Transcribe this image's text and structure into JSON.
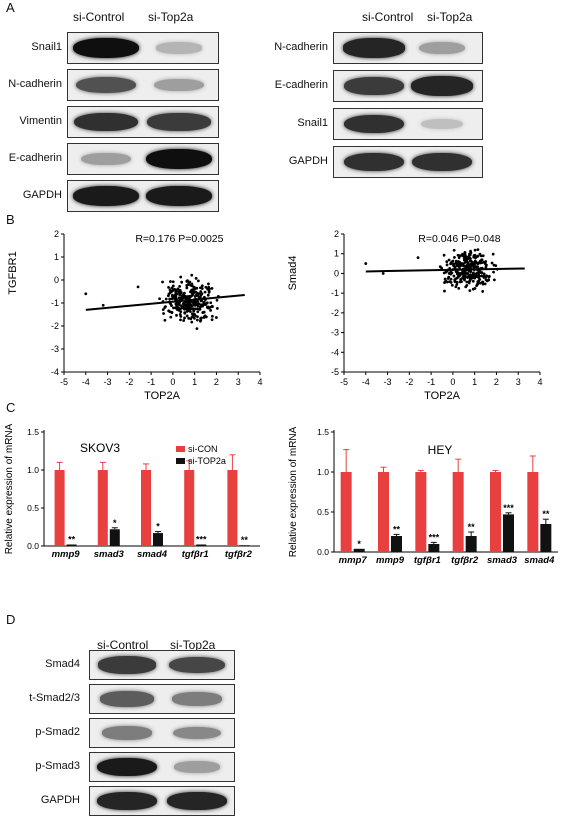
{
  "panels": {
    "a": "A",
    "b": "B",
    "c": "C",
    "d": "D"
  },
  "panel_a": {
    "left": {
      "headers": [
        "si-Control",
        "si-Top2a"
      ],
      "rows": [
        {
          "label": "Snail1",
          "band1": 1.0,
          "band2": 0.25
        },
        {
          "label": "N-cadherin",
          "band1": 0.7,
          "band2": 0.35
        },
        {
          "label": "Vimentin",
          "band1": 0.85,
          "band2": 0.8
        },
        {
          "label": "E-cadherin",
          "band1": 0.35,
          "band2": 1.0
        },
        {
          "label": "GAPDH",
          "band1": 0.95,
          "band2": 0.95
        }
      ]
    },
    "right": {
      "headers": [
        "si-Control",
        "si-Top2a"
      ],
      "rows": [
        {
          "label": "N-cadherin",
          "band1": 0.9,
          "band2": 0.35
        },
        {
          "label": "E-cadherin",
          "band1": 0.8,
          "band2": 0.9
        },
        {
          "label": "Snail1",
          "band1": 0.85,
          "band2": 0.2
        },
        {
          "label": "GAPDH",
          "band1": 0.85,
          "band2": 0.85
        }
      ]
    }
  },
  "panel_c_legend": {
    "con": "si-CON",
    "top": "si-TOP2a"
  },
  "panel_d": {
    "headers": [
      "si-Control",
      "si-Top2a"
    ],
    "rows": [
      {
        "label": "Smad4",
        "band1": 0.8,
        "band2": 0.75
      },
      {
        "label": "t-Smad2/3",
        "band1": 0.65,
        "band2": 0.5
      },
      {
        "label": "p-Smad2",
        "band1": 0.5,
        "band2": 0.45
      },
      {
        "label": "p-Smad3",
        "band1": 0.95,
        "band2": 0.35
      },
      {
        "label": "GAPDH",
        "band1": 0.9,
        "band2": 0.9
      }
    ]
  },
  "colors": {
    "con": "#e8403f",
    "top": "#111111"
  },
  "chart_data": [
    {
      "type": "scatter",
      "annotation": "R=0.176  P=0.0025",
      "xlabel": "TOP2A",
      "ylabel": "TGFBR1",
      "xlim": [
        -5,
        4
      ],
      "ylim": [
        -4,
        2
      ],
      "xticks": [
        "-5",
        "-4",
        "-3",
        "-2",
        "-1",
        "0",
        "1",
        "2",
        "3",
        "4"
      ],
      "yticks": [
        "-4",
        "-3",
        "-2",
        "-1",
        "0",
        "1",
        "2"
      ],
      "fit_line": [
        [
          -4,
          -1.3
        ],
        [
          3.3,
          -0.65
        ]
      ],
      "points_summary": {
        "x_center": 0.7,
        "y_center": -0.9,
        "x_range": [
          -4,
          3.5
        ],
        "y_range": [
          -2.3,
          1.2
        ]
      }
    },
    {
      "type": "scatter",
      "annotation": "R=0.046  P=0.048",
      "xlabel": "TOP2A",
      "ylabel": "Smad4",
      "xlim": [
        -5,
        4
      ],
      "ylim": [
        -5,
        2
      ],
      "xticks": [
        "-5",
        "-4",
        "-3",
        "-2",
        "-1",
        "0",
        "1",
        "2",
        "3",
        "4"
      ],
      "yticks": [
        "-5",
        "-4",
        "-3",
        "-2",
        "-1",
        "0",
        "1",
        "2"
      ],
      "fit_line": [
        [
          -4,
          0.1
        ],
        [
          3.3,
          0.25
        ]
      ],
      "points_summary": {
        "x_center": 0.7,
        "y_center": 0.2,
        "x_range": [
          -4,
          3.5
        ],
        "y_range": [
          -1.2,
          1.3
        ]
      }
    },
    {
      "type": "bar",
      "title": "SKOV3",
      "ylabel": "Relative expression of mRNA",
      "ylim": [
        0,
        1.5
      ],
      "yticks": [
        "0.0",
        "0.5",
        "1.0",
        "1.5"
      ],
      "categories": [
        "mmp9",
        "smad3",
        "smad4",
        "tgfβr1",
        "tgfβr2"
      ],
      "series": [
        {
          "name": "si-CON",
          "values": [
            1.0,
            1.0,
            1.0,
            1.0,
            1.0
          ],
          "errors": [
            0.1,
            0.1,
            0.08,
            0.12,
            0.2
          ]
        },
        {
          "name": "si-TOP2a",
          "values": [
            0.02,
            0.22,
            0.17,
            0.02,
            0.01
          ],
          "errors": [
            0.0,
            0.02,
            0.02,
            0.0,
            0.0
          ]
        }
      ],
      "significance": [
        "**",
        "*",
        "*",
        "***",
        "**"
      ]
    },
    {
      "type": "bar",
      "title": "HEY",
      "ylabel": "Relative expression of mRNA",
      "ylim": [
        0,
        1.5
      ],
      "yticks": [
        "0.0",
        "0.5",
        "1.0",
        "1.5"
      ],
      "categories": [
        "mmp7",
        "mmp9",
        "tgfβr1",
        "tgfβr2",
        "smad3",
        "smad4"
      ],
      "series": [
        {
          "name": "si-CON",
          "values": [
            1.0,
            1.0,
            1.0,
            1.0,
            1.0,
            1.0
          ],
          "errors": [
            0.28,
            0.06,
            0.02,
            0.16,
            0.02,
            0.2
          ]
        },
        {
          "name": "si-TOP2a",
          "values": [
            0.04,
            0.2,
            0.1,
            0.2,
            0.47,
            0.35
          ],
          "errors": [
            0.0,
            0.02,
            0.02,
            0.05,
            0.02,
            0.06
          ]
        }
      ],
      "significance": [
        "*",
        "**",
        "***",
        "**",
        "***",
        "**"
      ]
    }
  ]
}
